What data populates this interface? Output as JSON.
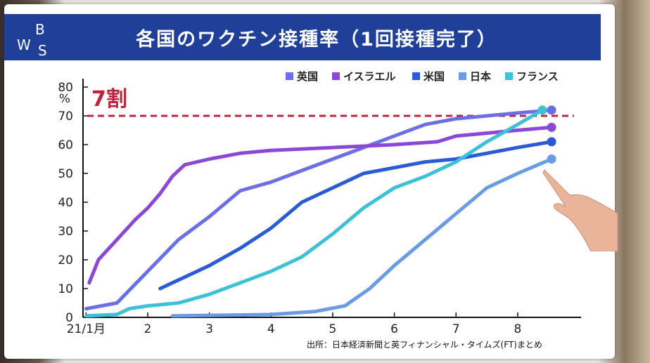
{
  "title": "各国のワクチン接種率（1回接種完了）",
  "logo": {
    "letters": [
      "B",
      "W",
      "S"
    ]
  },
  "source": "出所：日本経済新聞と英フィナンシャル・タイムズ(FT)まとめ",
  "colors": {
    "title_bg": "#1f3f98",
    "threshold": "#c0243c"
  },
  "chart_data": {
    "type": "line",
    "y_unit": "%",
    "ylim": [
      0,
      80
    ],
    "yticks": [
      0,
      10,
      20,
      30,
      40,
      50,
      60,
      70,
      80
    ],
    "x_tick_labels": [
      "21/1月",
      "2",
      "3",
      "4",
      "5",
      "6",
      "7",
      "8"
    ],
    "x_tick_values": [
      1,
      2,
      3,
      4,
      5,
      6,
      7,
      8
    ],
    "xlim": [
      0.95,
      8.8
    ],
    "grid": false,
    "legend_position": "top-right",
    "threshold": {
      "value": 70,
      "label": "7割",
      "color": "#c0243c",
      "style": "dashed"
    },
    "series": [
      {
        "name": "英国",
        "color": "#6b6ee6",
        "points": [
          [
            1.0,
            3
          ],
          [
            1.5,
            5
          ],
          [
            2.0,
            16
          ],
          [
            2.5,
            27
          ],
          [
            3.0,
            35
          ],
          [
            3.5,
            44
          ],
          [
            4.0,
            47
          ],
          [
            4.5,
            51
          ],
          [
            5.0,
            55
          ],
          [
            5.5,
            59
          ],
          [
            6.0,
            63
          ],
          [
            6.5,
            67
          ],
          [
            7.0,
            69
          ],
          [
            7.5,
            70
          ],
          [
            8.0,
            71
          ],
          [
            8.55,
            72
          ]
        ]
      },
      {
        "name": "イスラエル",
        "color": "#8b47d6",
        "points": [
          [
            1.05,
            12
          ],
          [
            1.2,
            20
          ],
          [
            1.5,
            27
          ],
          [
            1.8,
            34
          ],
          [
            2.0,
            38
          ],
          [
            2.2,
            43
          ],
          [
            2.4,
            49
          ],
          [
            2.6,
            53
          ],
          [
            3.0,
            55
          ],
          [
            3.5,
            57
          ],
          [
            4.0,
            58
          ],
          [
            5.0,
            59
          ],
          [
            6.0,
            60
          ],
          [
            6.7,
            61
          ],
          [
            7.0,
            63
          ],
          [
            8.0,
            65
          ],
          [
            8.55,
            66
          ]
        ]
      },
      {
        "name": "米国",
        "color": "#2a5ad6",
        "points": [
          [
            2.2,
            10
          ],
          [
            2.5,
            13
          ],
          [
            3.0,
            18
          ],
          [
            3.5,
            24
          ],
          [
            4.0,
            31
          ],
          [
            4.5,
            40
          ],
          [
            5.0,
            45
          ],
          [
            5.5,
            50
          ],
          [
            6.0,
            52
          ],
          [
            6.5,
            54
          ],
          [
            7.0,
            55
          ],
          [
            7.5,
            57
          ],
          [
            8.0,
            59
          ],
          [
            8.55,
            61
          ]
        ]
      },
      {
        "name": "日本",
        "color": "#6a9ce6",
        "points": [
          [
            2.4,
            0.5
          ],
          [
            3.0,
            0.7
          ],
          [
            4.0,
            1
          ],
          [
            4.7,
            2
          ],
          [
            5.2,
            4
          ],
          [
            5.6,
            10
          ],
          [
            6.0,
            18
          ],
          [
            6.5,
            27
          ],
          [
            7.0,
            36
          ],
          [
            7.5,
            45
          ],
          [
            8.0,
            50
          ],
          [
            8.55,
            55
          ]
        ]
      },
      {
        "name": "フランス",
        "color": "#3ec0d6",
        "points": [
          [
            1.0,
            0.5
          ],
          [
            1.5,
            1
          ],
          [
            1.7,
            3
          ],
          [
            2.0,
            4
          ],
          [
            2.5,
            5
          ],
          [
            3.0,
            8
          ],
          [
            3.5,
            12
          ],
          [
            4.0,
            16
          ],
          [
            4.5,
            21
          ],
          [
            5.0,
            29
          ],
          [
            5.5,
            38
          ],
          [
            6.0,
            45
          ],
          [
            6.5,
            49
          ],
          [
            7.0,
            54
          ],
          [
            7.5,
            61
          ],
          [
            8.0,
            67
          ],
          [
            8.4,
            72
          ]
        ]
      }
    ]
  }
}
